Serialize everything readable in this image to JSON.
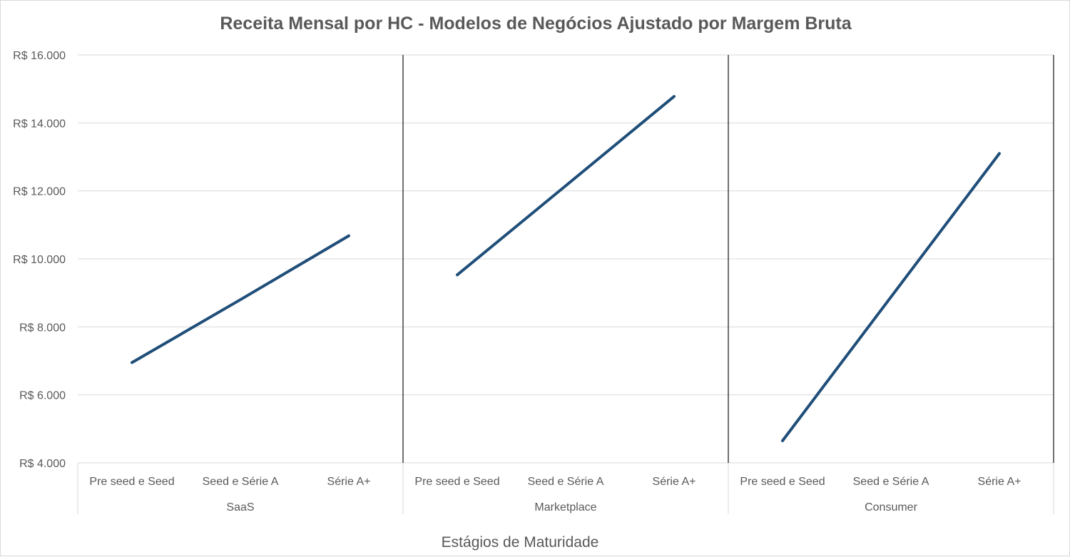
{
  "chart_data": {
    "type": "line",
    "title": "Receita Mensal por HC - Modelos de Negócios Ajustado por Margem Bruta",
    "xlabel": "Estágios de Maturidade",
    "ylabel": "",
    "ylim": [
      4000,
      16000
    ],
    "y_ticks": [
      4000,
      6000,
      8000,
      10000,
      12000,
      14000,
      16000
    ],
    "y_tick_labels": [
      "R$ 4.000",
      "R$ 6.000",
      "R$ 8.000",
      "R$ 10.000",
      "R$ 12.000",
      "R$ 14.000",
      "R$ 16.000"
    ],
    "grid": true,
    "legend": "none",
    "series_color": "#1f4e79",
    "groups": [
      {
        "name": "SaaS",
        "categories": [
          "Pre seed e Seed",
          "Seed e Série A",
          "Série A+"
        ],
        "values": [
          6950,
          8800,
          10680
        ]
      },
      {
        "name": "Marketplace",
        "categories": [
          "Pre seed e Seed",
          "Seed e Série A",
          "Série A+"
        ],
        "values": [
          9530,
          12150,
          14780
        ]
      },
      {
        "name": "Consumer",
        "categories": [
          "Pre seed e Seed",
          "Seed e Série A",
          "Série A+"
        ],
        "values": [
          4650,
          8880,
          13100
        ]
      }
    ]
  }
}
